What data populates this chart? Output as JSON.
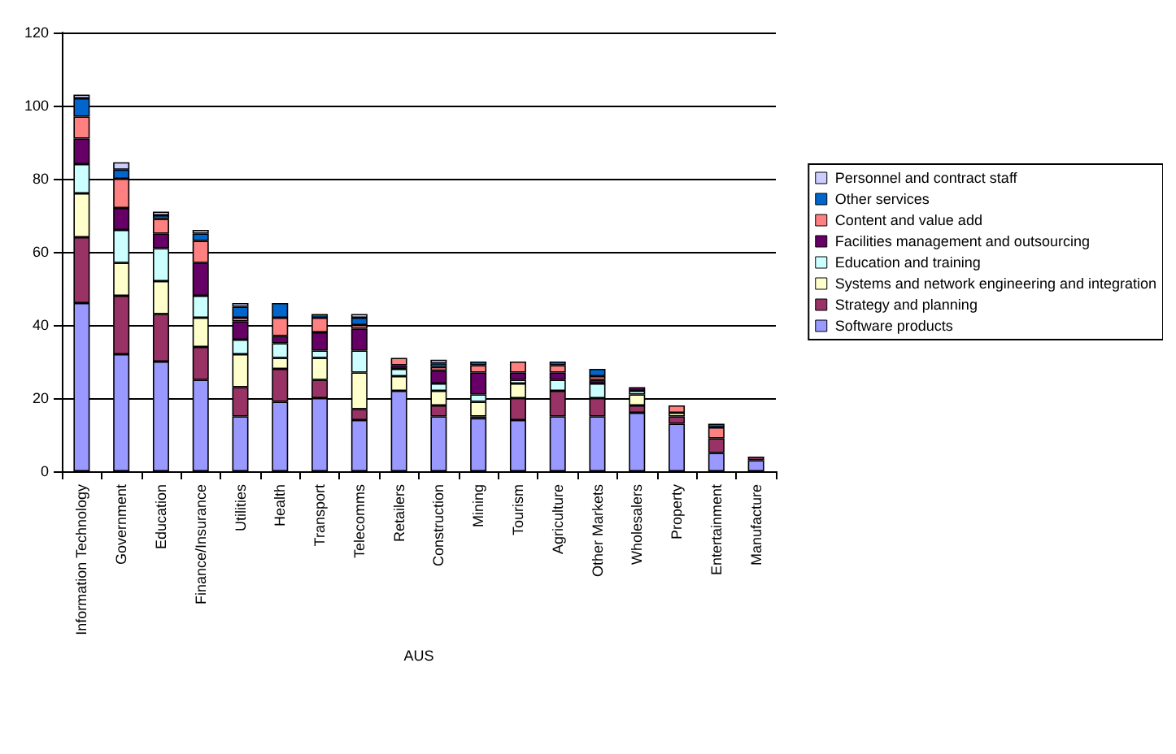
{
  "chart_data": {
    "type": "bar",
    "stacked": true,
    "xlabel": "AUS",
    "categories": [
      "Information Technology",
      "Government",
      "Education",
      "Finance/Insurance",
      "Utilities",
      "Health",
      "Transport",
      "Telecomms",
      "Retailers",
      "Construction",
      "Mining",
      "Tourism",
      "Agriculture",
      "Other Markets",
      "Wholesalers",
      "Property",
      "Entertainment",
      "Manufacture"
    ],
    "series": [
      {
        "name": "Software products",
        "color": "#9999ff",
        "values": [
          46,
          32,
          30,
          25,
          15,
          19,
          20,
          14,
          22,
          15,
          14.5,
          14,
          15,
          15,
          16,
          13,
          5,
          3
        ]
      },
      {
        "name": "Strategy and planning",
        "color": "#993366",
        "values": [
          18,
          16,
          13,
          9,
          8,
          9,
          5,
          3,
          0,
          3,
          0.5,
          6,
          7,
          5,
          2,
          2,
          4,
          1
        ]
      },
      {
        "name": "Systems and network engineering and integration",
        "color": "#ffffcc",
        "values": [
          12,
          9,
          9,
          8,
          9,
          3,
          6,
          10,
          4,
          4,
          4,
          4,
          0,
          0,
          3,
          1,
          0,
          0
        ]
      },
      {
        "name": "Education and training",
        "color": "#ccffff",
        "values": [
          8,
          9,
          9,
          6,
          4,
          4,
          2,
          6,
          2,
          2,
          2,
          1,
          3,
          4,
          1,
          0,
          0,
          0
        ]
      },
      {
        "name": "Facilities management and outsourcing",
        "color": "#660066",
        "values": [
          7,
          6,
          4,
          9,
          5,
          2,
          5,
          6,
          1,
          3.5,
          6,
          2,
          2,
          1,
          1,
          0,
          0,
          0
        ]
      },
      {
        "name": "Content and value add",
        "color": "#ff8080",
        "values": [
          6,
          8,
          4,
          6,
          1,
          5,
          4,
          1,
          2,
          1,
          2,
          3,
          2,
          1,
          0,
          2,
          3,
          0
        ]
      },
      {
        "name": "Other services",
        "color": "#0066cc",
        "values": [
          5,
          2.5,
          1,
          2,
          3,
          4,
          1,
          2,
          0,
          1,
          1,
          0,
          1,
          2,
          0,
          0,
          1,
          0
        ]
      },
      {
        "name": "Personnel and contract staff",
        "color": "#ccccff",
        "values": [
          1,
          2,
          1,
          1,
          1,
          0,
          0,
          1,
          0,
          1,
          0,
          0,
          0,
          0,
          0,
          0,
          0,
          0
        ]
      }
    ],
    "ylim": [
      0,
      120
    ],
    "yticks": [
      0,
      20,
      40,
      60,
      80,
      100,
      120
    ],
    "grid": "y",
    "legend": "right"
  }
}
